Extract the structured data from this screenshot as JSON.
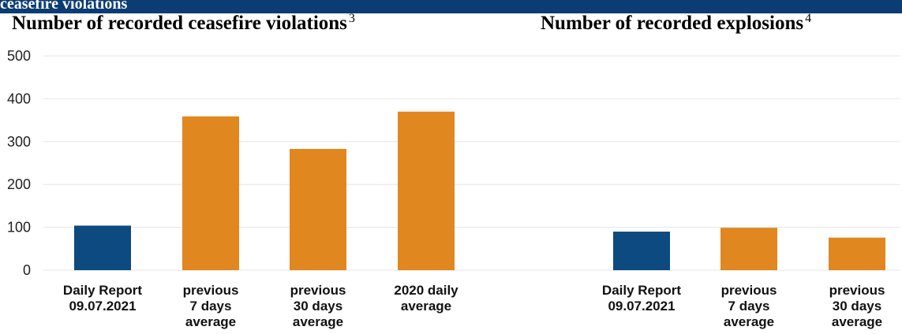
{
  "banner": {
    "text": "ceasefire violations"
  },
  "colors": {
    "banner": "#0b3c73",
    "daily": "#0d4a80",
    "average": "#e08720",
    "grid": "#e6e6e6"
  },
  "chart_data": [
    {
      "type": "bar",
      "title": "Number of recorded ceasefire violations",
      "title_footnote": "3",
      "categories": [
        [
          "Daily Report",
          "09.07.2021"
        ],
        [
          "previous",
          "7 days",
          "average"
        ],
        [
          "previous",
          "30 days",
          "average"
        ],
        [
          "2020 daily",
          "average"
        ]
      ],
      "values": [
        104,
        359,
        283,
        370
      ],
      "bar_colors": [
        "#0d4a80",
        "#e08720",
        "#e08720",
        "#e08720"
      ],
      "ylim": [
        0,
        500
      ],
      "yticks": [
        0,
        100,
        200,
        300,
        400,
        500
      ],
      "grid": true
    },
    {
      "type": "bar",
      "title": "Number of recorded explosions",
      "title_footnote": "4",
      "categories": [
        [
          "Daily Report",
          "09.07.2021"
        ],
        [
          "previous",
          "7 days",
          "average"
        ],
        [
          "previous",
          "30 days",
          "average"
        ]
      ],
      "values": [
        90,
        99,
        76
      ],
      "bar_colors": [
        "#0d4a80",
        "#e08720",
        "#e08720"
      ],
      "ylim": [
        0,
        500
      ],
      "grid": true
    }
  ]
}
